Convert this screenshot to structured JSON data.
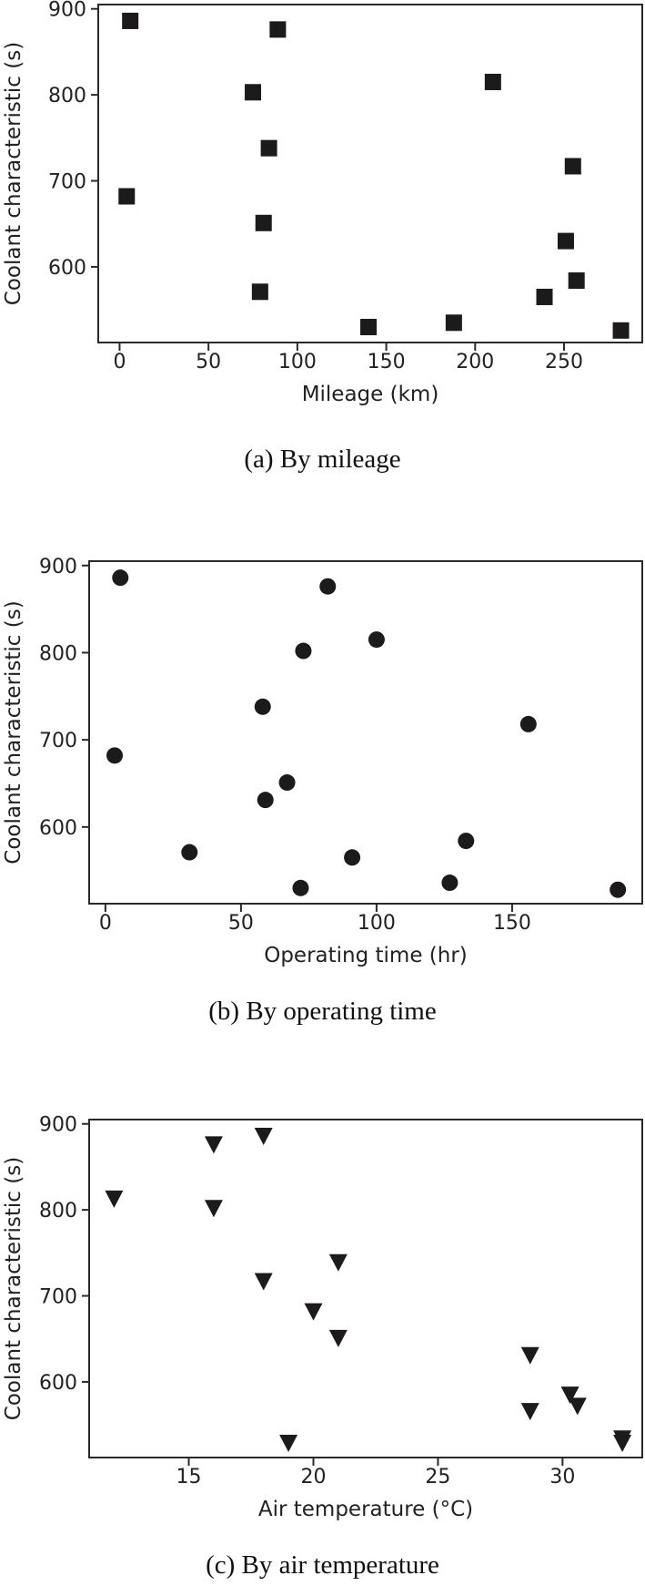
{
  "figure": {
    "captions": [
      "(a) By mileage",
      "(b) By operating time",
      "(c) By air temperature"
    ]
  },
  "chart_data": [
    {
      "type": "scatter",
      "title": "(a) By mileage",
      "xlabel": "Mileage (km)",
      "ylabel": "Coolant characteristic (s)",
      "marker": "square",
      "color": "#1c1a1b",
      "xticks": [
        0,
        50,
        100,
        150,
        200,
        250
      ],
      "yticks": [
        600,
        700,
        800,
        900
      ],
      "xlim": [
        -12,
        294
      ],
      "ylim": [
        512,
        905
      ],
      "grid": false,
      "points": [
        {
          "x": 6,
          "y": 886
        },
        {
          "x": 4,
          "y": 682
        },
        {
          "x": 75,
          "y": 803
        },
        {
          "x": 84,
          "y": 738
        },
        {
          "x": 81,
          "y": 651
        },
        {
          "x": 79,
          "y": 571
        },
        {
          "x": 89,
          "y": 876
        },
        {
          "x": 210,
          "y": 815
        },
        {
          "x": 255,
          "y": 717
        },
        {
          "x": 251,
          "y": 630
        },
        {
          "x": 257,
          "y": 584
        },
        {
          "x": 239,
          "y": 565
        },
        {
          "x": 140,
          "y": 530
        },
        {
          "x": 188,
          "y": 535
        },
        {
          "x": 282,
          "y": 526
        }
      ]
    },
    {
      "type": "scatter",
      "title": "(b) By operating time",
      "xlabel": "Operating time (hr)",
      "ylabel": "Coolant characteristic (s)",
      "marker": "circle",
      "color": "#1c1a1b",
      "xticks": [
        0,
        50,
        100,
        150
      ],
      "yticks": [
        600,
        700,
        800,
        900
      ],
      "xlim": [
        -6,
        198
      ],
      "ylim": [
        512,
        905
      ],
      "grid": false,
      "points": [
        {
          "x": 5.5,
          "y": 886
        },
        {
          "x": 3.4,
          "y": 682
        },
        {
          "x": 73,
          "y": 802
        },
        {
          "x": 58,
          "y": 738
        },
        {
          "x": 67,
          "y": 651
        },
        {
          "x": 59,
          "y": 631
        },
        {
          "x": 31,
          "y": 571
        },
        {
          "x": 72,
          "y": 530
        },
        {
          "x": 82,
          "y": 876
        },
        {
          "x": 100,
          "y": 815
        },
        {
          "x": 156,
          "y": 718
        },
        {
          "x": 133,
          "y": 584
        },
        {
          "x": 91,
          "y": 565
        },
        {
          "x": 127,
          "y": 536
        },
        {
          "x": 189,
          "y": 528
        }
      ]
    },
    {
      "type": "scatter",
      "title": "(c) By air temperature",
      "xlabel": "Air temperature (°C)",
      "ylabel": "Coolant characteristic (s)",
      "marker": "triangle-down",
      "color": "#1c1a1b",
      "xticks": [
        15,
        20,
        25,
        30
      ],
      "yticks": [
        600,
        700,
        800,
        900
      ],
      "xlim": [
        11,
        33.2
      ],
      "ylim": [
        512,
        905
      ],
      "grid": false,
      "points": [
        {
          "x": 12,
          "y": 814
        },
        {
          "x": 16,
          "y": 877
        },
        {
          "x": 18,
          "y": 887
        },
        {
          "x": 16,
          "y": 803
        },
        {
          "x": 18,
          "y": 718
        },
        {
          "x": 20,
          "y": 683
        },
        {
          "x": 19,
          "y": 530
        },
        {
          "x": 21,
          "y": 740
        },
        {
          "x": 21,
          "y": 652
        },
        {
          "x": 28.7,
          "y": 632
        },
        {
          "x": 28.7,
          "y": 567
        },
        {
          "x": 30.3,
          "y": 586
        },
        {
          "x": 30.6,
          "y": 573
        },
        {
          "x": 32.4,
          "y": 535
        },
        {
          "x": 32.4,
          "y": 530
        }
      ]
    }
  ]
}
